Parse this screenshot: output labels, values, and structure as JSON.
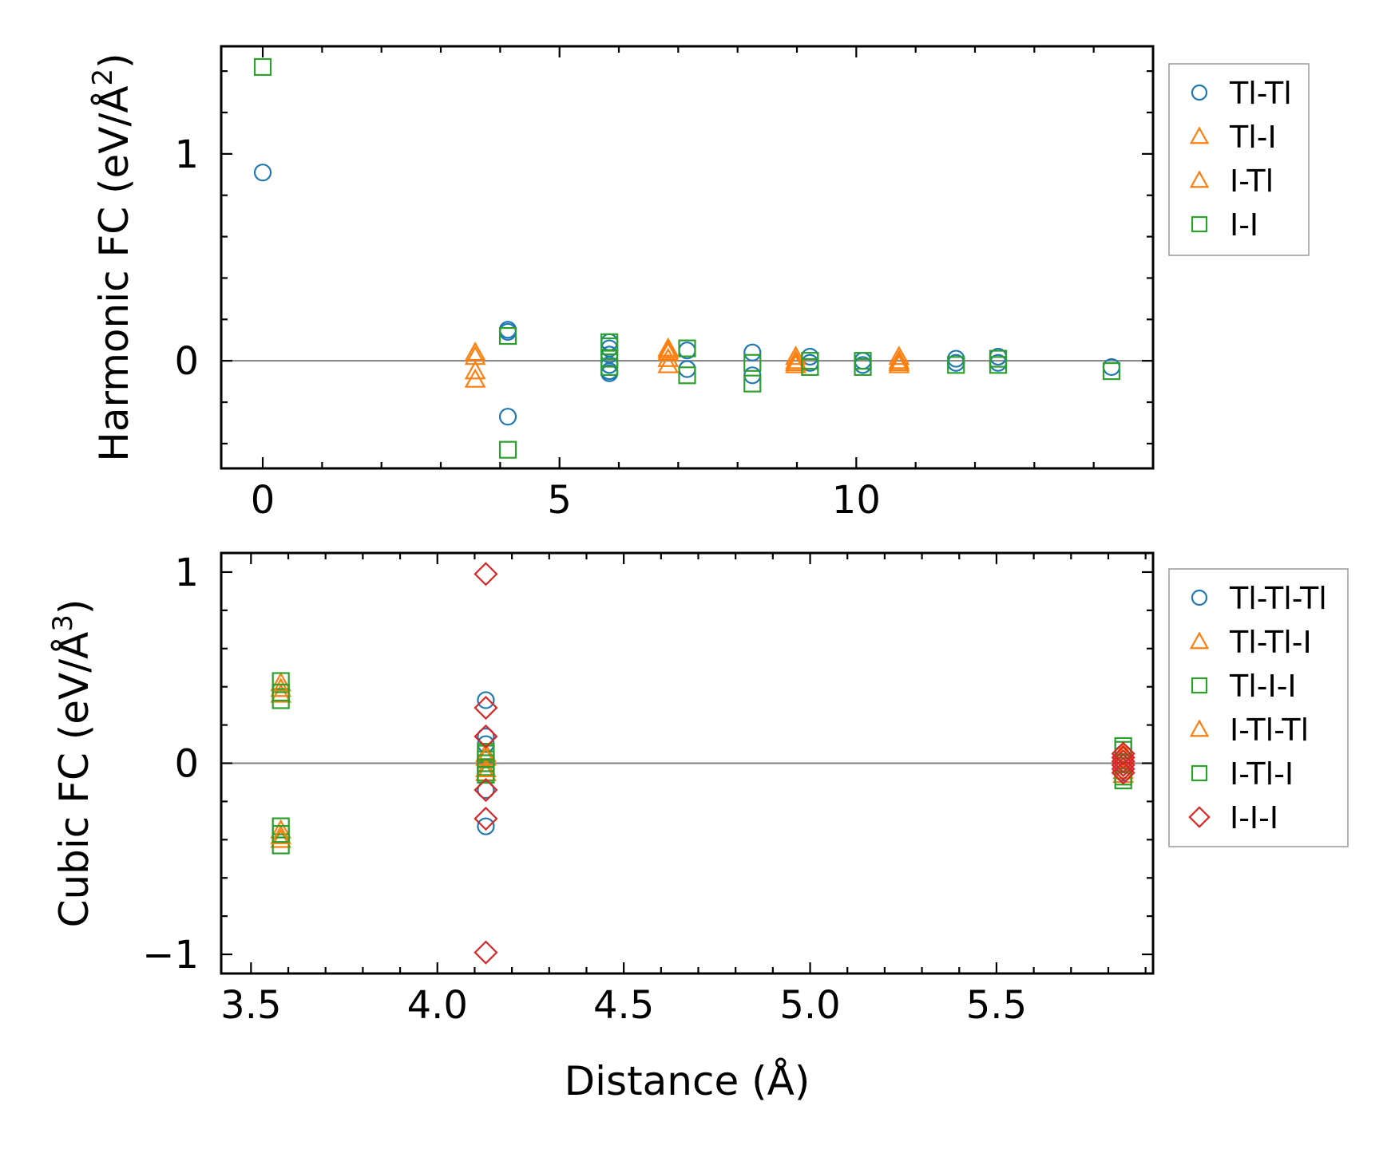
{
  "chart_data": [
    {
      "type": "scatter",
      "title": "",
      "xlabel": "",
      "ylabel": "Harmonic FC (eV/Å²)",
      "ylabel_parts": {
        "main": "Harmonic FC (eV/Å",
        "sup": "2",
        "close": ")"
      },
      "xlim": [
        -0.7,
        15.0
      ],
      "ylim": [
        -0.52,
        1.52
      ],
      "xticks": [
        0,
        5,
        10
      ],
      "xtick_labels": [
        "0",
        "5",
        "10"
      ],
      "yticks": [
        0,
        1
      ],
      "ytick_labels": [
        "0",
        "1"
      ],
      "zero_line": true,
      "legend_position": "outside-right",
      "series": [
        {
          "name": "Tl-Tl",
          "marker": "circle",
          "color": "#1f77b4",
          "points": [
            [
              0,
              0.91
            ],
            [
              4.13,
              0.15
            ],
            [
              4.13,
              0.14
            ],
            [
              4.13,
              -0.27
            ],
            [
              5.84,
              0.09
            ],
            [
              5.84,
              0.06
            ],
            [
              5.84,
              0.03
            ],
            [
              5.84,
              -0.02
            ],
            [
              5.84,
              -0.05
            ],
            [
              5.84,
              -0.06
            ],
            [
              7.15,
              0.05
            ],
            [
              7.15,
              -0.04
            ],
            [
              8.25,
              0.04
            ],
            [
              8.25,
              -0.07
            ],
            [
              9.22,
              0.02
            ],
            [
              9.22,
              -0.01
            ],
            [
              10.11,
              0.0
            ],
            [
              10.11,
              -0.02
            ],
            [
              11.68,
              0.01
            ],
            [
              11.68,
              -0.01
            ],
            [
              12.39,
              0.02
            ],
            [
              12.39,
              -0.01
            ],
            [
              14.3,
              -0.03
            ]
          ]
        },
        {
          "name": "Tl-I",
          "marker": "triangle",
          "color": "#ff7f0e",
          "points": [
            [
              3.58,
              0.04
            ],
            [
              3.58,
              -0.05
            ],
            [
              6.83,
              0.06
            ],
            [
              6.83,
              0.04
            ],
            [
              6.83,
              -0.02
            ],
            [
              8.98,
              0.02
            ],
            [
              8.98,
              -0.01
            ],
            [
              10.72,
              0.02
            ],
            [
              10.72,
              -0.01
            ]
          ]
        },
        {
          "name": "I-Tl",
          "marker": "triangle",
          "color": "#ff7f0e",
          "points": [
            [
              3.58,
              0.02
            ],
            [
              3.58,
              -0.09
            ],
            [
              6.83,
              0.05
            ],
            [
              6.83,
              0.01
            ],
            [
              8.98,
              0.0
            ],
            [
              8.98,
              -0.02
            ],
            [
              10.72,
              0.0
            ],
            [
              10.72,
              -0.02
            ]
          ]
        },
        {
          "name": "I-I",
          "marker": "square",
          "color": "#2ca02c",
          "points": [
            [
              0,
              1.42
            ],
            [
              4.13,
              0.12
            ],
            [
              4.13,
              -0.43
            ],
            [
              5.84,
              0.09
            ],
            [
              5.84,
              0.07
            ],
            [
              5.84,
              0.01
            ],
            [
              5.84,
              -0.03
            ],
            [
              7.15,
              0.06
            ],
            [
              7.15,
              -0.07
            ],
            [
              8.25,
              -0.01
            ],
            [
              8.25,
              -0.11
            ],
            [
              9.22,
              0.0
            ],
            [
              9.22,
              -0.03
            ],
            [
              10.11,
              0.0
            ],
            [
              10.11,
              -0.03
            ],
            [
              11.68,
              -0.02
            ],
            [
              12.39,
              0.01
            ],
            [
              12.39,
              -0.02
            ],
            [
              14.3,
              -0.05
            ]
          ]
        }
      ]
    },
    {
      "type": "scatter",
      "title": "",
      "xlabel": "Distance (Å)",
      "ylabel": "Cubic FC (eV/Å³)",
      "ylabel_parts": {
        "main": "Cubic FC (eV/Å",
        "sup": "3",
        "close": ")"
      },
      "xlim": [
        3.42,
        5.92
      ],
      "ylim": [
        -1.1,
        1.1
      ],
      "xticks": [
        3.5,
        4.0,
        4.5,
        5.0,
        5.5
      ],
      "xtick_labels": [
        "3.5",
        "4.0",
        "4.5",
        "5.0",
        "5.5"
      ],
      "yticks": [
        -1,
        0,
        1
      ],
      "ytick_labels": [
        "−1",
        "0",
        "1"
      ],
      "zero_line": true,
      "legend_position": "outside-right",
      "series": [
        {
          "name": "Tl-Tl-Tl",
          "marker": "circle",
          "color": "#1f77b4",
          "points": [
            [
              4.13,
              0.33
            ],
            [
              4.13,
              0.14
            ],
            [
              4.13,
              0.1
            ],
            [
              4.13,
              -0.14
            ],
            [
              4.13,
              -0.33
            ],
            [
              5.84,
              0.05
            ],
            [
              5.84,
              -0.05
            ]
          ]
        },
        {
          "name": "Tl-Tl-I",
          "marker": "triangle",
          "color": "#ff7f0e",
          "points": [
            [
              3.58,
              0.42
            ],
            [
              3.58,
              0.36
            ],
            [
              3.58,
              -0.35
            ],
            [
              3.58,
              -0.4
            ],
            [
              4.13,
              0.05
            ],
            [
              4.13,
              -0.05
            ],
            [
              5.84,
              0.06
            ],
            [
              5.84,
              -0.06
            ]
          ]
        },
        {
          "name": "Tl-I-I",
          "marker": "square",
          "color": "#2ca02c",
          "points": [
            [
              3.58,
              0.43
            ],
            [
              3.58,
              0.33
            ],
            [
              3.58,
              -0.33
            ],
            [
              3.58,
              -0.43
            ],
            [
              4.13,
              0.05
            ],
            [
              4.13,
              0.02
            ],
            [
              4.13,
              -0.02
            ],
            [
              4.13,
              -0.05
            ],
            [
              5.84,
              0.09
            ],
            [
              5.84,
              -0.09
            ]
          ]
        },
        {
          "name": "I-Tl-Tl",
          "marker": "triangle",
          "color": "#ff7f0e",
          "points": [
            [
              3.58,
              0.39
            ],
            [
              3.58,
              -0.38
            ],
            [
              4.13,
              0.03
            ],
            [
              4.13,
              -0.03
            ],
            [
              5.84,
              0.04
            ],
            [
              5.84,
              -0.04
            ]
          ]
        },
        {
          "name": "I-Tl-I",
          "marker": "square",
          "color": "#2ca02c",
          "points": [
            [
              3.58,
              0.37
            ],
            [
              3.58,
              -0.37
            ],
            [
              4.13,
              0.06
            ],
            [
              4.13,
              0.0
            ],
            [
              4.13,
              -0.06
            ],
            [
              5.84,
              0.07
            ],
            [
              5.84,
              0.0
            ],
            [
              5.84,
              -0.07
            ]
          ]
        },
        {
          "name": "I-I-I",
          "marker": "diamond",
          "color": "#d62728",
          "points": [
            [
              4.13,
              0.99
            ],
            [
              4.13,
              0.29
            ],
            [
              4.13,
              0.14
            ],
            [
              4.13,
              -0.14
            ],
            [
              4.13,
              -0.29
            ],
            [
              4.13,
              -0.99
            ],
            [
              5.84,
              0.05
            ],
            [
              5.84,
              0.03
            ],
            [
              5.84,
              0.01
            ],
            [
              5.84,
              -0.01
            ],
            [
              5.84,
              -0.03
            ],
            [
              5.84,
              -0.05
            ]
          ]
        }
      ]
    }
  ]
}
